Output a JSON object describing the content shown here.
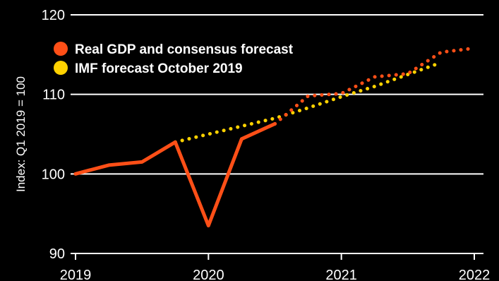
{
  "chart_data": {
    "type": "line",
    "ylabel": "Index: Q1 2019 = 100",
    "xlabel": "",
    "title": "",
    "xlim": [
      2019,
      2022
    ],
    "ylim": [
      90,
      120
    ],
    "x_ticks": [
      2019,
      2020,
      2021,
      2022
    ],
    "x_tick_labels": [
      "2019",
      "2020",
      "2021",
      "2022"
    ],
    "y_ticks": [
      90,
      100,
      110,
      120
    ],
    "y_tick_labels": [
      "90",
      "100",
      "110",
      "120"
    ],
    "grid": "horizontal",
    "legend_position": "top-left",
    "series": [
      {
        "name": "Real GDP and consensus forecast",
        "color": "#ff4f17",
        "segments": [
          {
            "style": "solid",
            "x": [
              2019.0,
              2019.25,
              2019.5,
              2019.75,
              2020.0,
              2020.25,
              2020.5
            ],
            "y": [
              100.0,
              101.1,
              101.5,
              104.0,
              93.5,
              104.4,
              106.3
            ]
          },
          {
            "style": "dotted",
            "x": [
              2020.5,
              2020.75,
              2021.0,
              2021.25,
              2021.5,
              2021.75,
              2022.0
            ],
            "y": [
              106.3,
              109.8,
              110.1,
              112.2,
              112.6,
              115.3,
              115.8
            ]
          }
        ]
      },
      {
        "name": "IMF forecast October 2019",
        "color": "#ffd200",
        "segments": [
          {
            "style": "dotted",
            "x": [
              2019.75,
              2020.0,
              2020.25,
              2020.5,
              2020.75,
              2021.0,
              2021.25,
              2021.5,
              2021.75
            ],
            "y": [
              104.0,
              105.0,
              106.0,
              107.0,
              108.3,
              109.7,
              111.0,
              112.5,
              114.0
            ]
          }
        ]
      }
    ]
  }
}
